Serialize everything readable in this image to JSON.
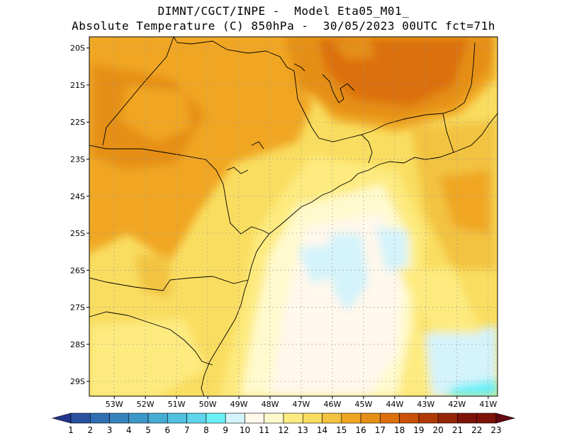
{
  "header": {
    "line1": "DIMNT/CGCT/INPE -  Model Eta05_M01_",
    "line2": "Absolute Temperature (C) 850hPa -  30/05/2023 00UTC fct=71h"
  },
  "axes": {
    "lat_ticks": [
      "20S",
      "21S",
      "22S",
      "23S",
      "24S",
      "25S",
      "26S",
      "27S",
      "28S",
      "29S"
    ],
    "lon_ticks": [
      "53W",
      "52W",
      "51W",
      "50W",
      "49W",
      "48W",
      "47W",
      "46W",
      "45W",
      "44W",
      "43W",
      "42W",
      "41W"
    ],
    "lat_values": [
      -20,
      -21,
      -22,
      -23,
      -24,
      -25,
      -26,
      -27,
      -28,
      -29
    ],
    "lon_values": [
      -53,
      -52,
      -51,
      -50,
      -49,
      -48,
      -47,
      -46,
      -45,
      -44,
      -43,
      -42,
      -41
    ],
    "lat_range": [
      -29.4,
      -19.7
    ],
    "lon_range": [
      -53.8,
      -40.7
    ],
    "grid": "dotted"
  },
  "colorbar": {
    "labels": [
      "1",
      "2",
      "3",
      "4",
      "5",
      "6",
      "7",
      "8",
      "9",
      "10",
      "11",
      "12",
      "13",
      "14",
      "15",
      "16",
      "17",
      "18",
      "19",
      "20",
      "21",
      "22",
      "23"
    ],
    "colors": [
      "#23348c",
      "#2a50a0",
      "#2f6fb2",
      "#3583bd",
      "#3c98c8",
      "#46acd3",
      "#52c0df",
      "#5fd4ea",
      "#6cf0f7",
      "#d4f3fb",
      "#fff8eb",
      "#fffacd",
      "#fdeb80",
      "#f9dd60",
      "#f2c340",
      "#f0a623",
      "#e58f17",
      "#dc6f0e",
      "#c95206",
      "#af3a06",
      "#962608",
      "#7d1208",
      "#640712"
    ]
  }
}
